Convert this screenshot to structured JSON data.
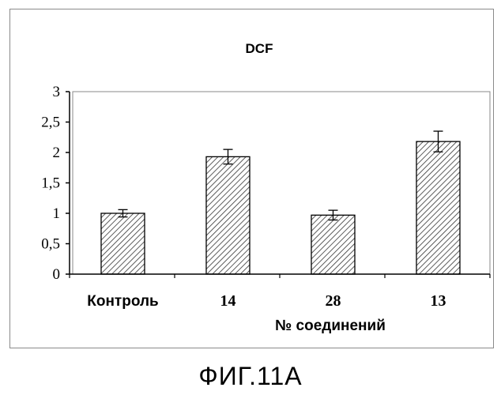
{
  "figure_caption": "ФИГ.11А",
  "chart_data": {
    "type": "bar",
    "title": "DCF",
    "xlabel": "№ соединений",
    "ylabel": "",
    "categories": [
      "Контроль",
      "14",
      "28",
      "13"
    ],
    "values": [
      1.0,
      1.93,
      0.97,
      2.18
    ],
    "errors": [
      0.06,
      0.12,
      0.08,
      0.17
    ],
    "ylim": [
      0,
      3
    ],
    "yticks": [
      0,
      0.5,
      1,
      1.5,
      2,
      2.5,
      3
    ],
    "ytick_labels": [
      "0",
      "0,5",
      "1",
      "1,5",
      "2",
      "2,5",
      "3"
    ],
    "grid": false,
    "legend": "none",
    "bar_pattern": "diagonal-hatch"
  }
}
